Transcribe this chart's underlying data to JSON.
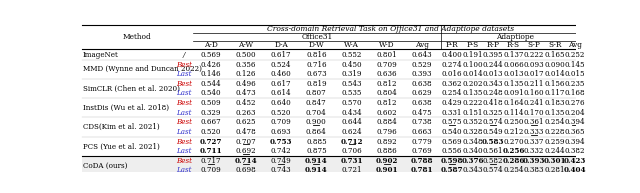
{
  "title": "Cross-domain Retrieval Task on Office31 and Adaptiope datasets",
  "office31_label": "Office31",
  "adaptiope_label": "Adaptiope",
  "office31_cols": [
    "A-D",
    "A-W",
    "D-A",
    "D-W",
    "W-A",
    "W-D",
    "Avg"
  ],
  "adaptiope_cols": [
    "P-R",
    "P-S",
    "R-P",
    "R-S",
    "S-P",
    "S-R",
    "Avg"
  ],
  "methods": [
    {
      "name": "ImageNet",
      "sub": "/",
      "sub_color": "black",
      "office31": [
        "0.569",
        "0.500",
        "0.617",
        "0.816",
        "0.552",
        "0.801",
        "0.643"
      ],
      "adaptiope": [
        "0.400",
        "0.191",
        "0.395",
        "0.137",
        "0.222",
        "0.165",
        "0.252"
      ],
      "bold_office": [],
      "bold_adaptiope": [],
      "underline_office": [],
      "underline_adaptiope": []
    },
    {
      "name": "MMD (Wynne and Duncan 2022)",
      "sub": "Best",
      "sub_color": "#cc0000",
      "office31": [
        "0.426",
        "0.356",
        "0.524",
        "0.716",
        "0.450",
        "0.709",
        "0.529"
      ],
      "adaptiope": [
        "0.274",
        "0.100",
        "0.244",
        "0.066",
        "0.093",
        "0.090",
        "0.145"
      ],
      "bold_office": [],
      "bold_adaptiope": [],
      "underline_office": [],
      "underline_adaptiope": []
    },
    {
      "name": "MMD (Wynne and Duncan 2022)",
      "sub": "Last",
      "sub_color": "#3333cc",
      "office31": [
        "0.146",
        "0.126",
        "0.460",
        "0.673",
        "0.319",
        "0.636",
        "0.393"
      ],
      "adaptiope": [
        "0.016",
        "0.014",
        "0.013",
        "0.013",
        "0.017",
        "0.014",
        "0.015"
      ],
      "bold_office": [],
      "bold_adaptiope": [],
      "underline_office": [],
      "underline_adaptiope": []
    },
    {
      "name": "SimCLR (Chen et al. 2020)",
      "sub": "Best",
      "sub_color": "#cc0000",
      "office31": [
        "0.544",
        "0.496",
        "0.617",
        "0.819",
        "0.543",
        "0.812",
        "0.638"
      ],
      "adaptiope": [
        "0.362",
        "0.202",
        "0.343",
        "0.135",
        "0.211",
        "0.156",
        "0.235"
      ],
      "bold_office": [],
      "bold_adaptiope": [],
      "underline_office": [],
      "underline_adaptiope": []
    },
    {
      "name": "SimCLR (Chen et al. 2020)",
      "sub": "Last",
      "sub_color": "#3333cc",
      "office31": [
        "0.540",
        "0.473",
        "0.614",
        "0.807",
        "0.535",
        "0.804",
        "0.629"
      ],
      "adaptiope": [
        "0.254",
        "0.135",
        "0.248",
        "0.091",
        "0.160",
        "0.117",
        "0.168"
      ],
      "bold_office": [],
      "bold_adaptiope": [],
      "underline_office": [],
      "underline_adaptiope": []
    },
    {
      "name": "InstDis (Wu et al. 2018)",
      "sub": "Best",
      "sub_color": "#cc0000",
      "office31": [
        "0.509",
        "0.452",
        "0.640",
        "0.847",
        "0.570",
        "0.812",
        "0.638"
      ],
      "adaptiope": [
        "0.429",
        "0.222",
        "0.418",
        "0.164",
        "0.241",
        "0.183",
        "0.276"
      ],
      "bold_office": [],
      "bold_adaptiope": [],
      "underline_office": [],
      "underline_adaptiope": []
    },
    {
      "name": "InstDis (Wu et al. 2018)",
      "sub": "Last",
      "sub_color": "#3333cc",
      "office31": [
        "0.329",
        "0.263",
        "0.520",
        "0.704",
        "0.434",
        "0.602",
        "0.475"
      ],
      "adaptiope": [
        "0.331",
        "0.151",
        "0.325",
        "0.114",
        "0.170",
        "0.135",
        "0.204"
      ],
      "bold_office": [],
      "bold_adaptiope": [],
      "underline_office": [],
      "underline_adaptiope": []
    },
    {
      "name": "CDS(Kim et al. 2021)",
      "sub": "Best",
      "sub_color": "#cc0000",
      "office31": [
        "0.667",
        "0.625",
        "0.709",
        "0.900",
        "0.644",
        "0.884",
        "0.738"
      ],
      "adaptiope": [
        "0.575",
        "0.352",
        "0.574",
        "0.250",
        "0.361",
        "0.254",
        "0.394"
      ],
      "bold_office": [],
      "bold_adaptiope": [],
      "underline_office": [
        3
      ],
      "underline_adaptiope": [
        0,
        2,
        4,
        6
      ]
    },
    {
      "name": "CDS(Kim et al. 2021)",
      "sub": "Last",
      "sub_color": "#3333cc",
      "office31": [
        "0.520",
        "0.478",
        "0.693",
        "0.864",
        "0.624",
        "0.796",
        "0.663"
      ],
      "adaptiope": [
        "0.540",
        "0.328",
        "0.549",
        "0.212",
        "0.333",
        "0.228",
        "0.365"
      ],
      "bold_office": [],
      "bold_adaptiope": [],
      "underline_office": [],
      "underline_adaptiope": [
        4
      ]
    },
    {
      "name": "PCS (Yue et al. 2021)",
      "sub": "Best",
      "sub_color": "#cc0000",
      "office31": [
        "0.727",
        "0.707",
        "0.753",
        "0.885",
        "0.712",
        "0.892",
        "0.779"
      ],
      "adaptiope": [
        "0.569",
        "0.348",
        "0.583",
        "0.270",
        "0.337",
        "0.259",
        "0.394"
      ],
      "bold_office": [
        0,
        2,
        4
      ],
      "bold_adaptiope": [
        2
      ],
      "underline_office": [
        1,
        4
      ],
      "underline_adaptiope": []
    },
    {
      "name": "PCS (Yue et al. 2021)",
      "sub": "Last",
      "sub_color": "#3333cc",
      "office31": [
        "0.711",
        "0.692",
        "0.742",
        "0.875",
        "0.706",
        "0.886",
        "0.769"
      ],
      "adaptiope": [
        "0.556",
        "0.340",
        "0.561",
        "0.256",
        "0.332",
        "0.244",
        "0.382"
      ],
      "bold_office": [
        0
      ],
      "bold_adaptiope": [
        3
      ],
      "underline_office": [
        1
      ],
      "underline_adaptiope": []
    },
    {
      "name": "CoDA (ours)",
      "sub": "Best",
      "sub_color": "#cc0000",
      "office31": [
        "0.717",
        "0.714",
        "0.749",
        "0.914",
        "0.731",
        "0.902",
        "0.788"
      ],
      "adaptiope": [
        "0.598",
        "0.376",
        "0.582",
        "0.286",
        "0.393",
        "0.301",
        "0.423"
      ],
      "bold_office": [
        1,
        3,
        4,
        5,
        6
      ],
      "bold_adaptiope": [
        0,
        1,
        3,
        4,
        5,
        6
      ],
      "underline_office": [
        0,
        1,
        2,
        3,
        5
      ],
      "underline_adaptiope": [
        0,
        2
      ]
    },
    {
      "name": "CoDA (ours)",
      "sub": "Last",
      "sub_color": "#3333cc",
      "office31": [
        "0.709",
        "0.698",
        "0.743",
        "0.914",
        "0.721",
        "0.901",
        "0.781"
      ],
      "adaptiope": [
        "0.587",
        "0.343",
        "0.574",
        "0.254",
        "0.383",
        "0.281",
        "0.404"
      ],
      "bold_office": [
        3,
        5,
        6
      ],
      "bold_adaptiope": [
        0,
        6
      ],
      "underline_office": [
        0,
        1,
        2,
        3,
        5
      ],
      "underline_adaptiope": [
        3
      ]
    }
  ],
  "bg_color": "#ffffff",
  "coda_bg": "#eeeeee"
}
